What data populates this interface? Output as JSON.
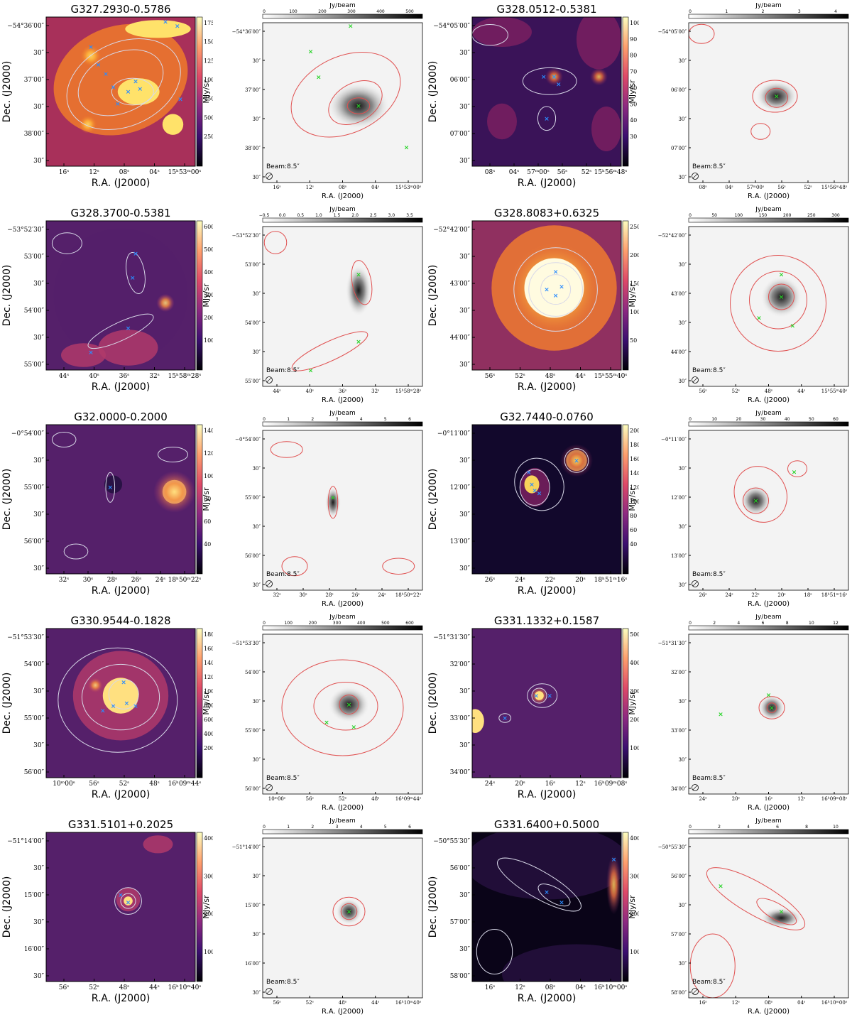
{
  "figure": {
    "panels": [
      {
        "name": "G327.2930-0.5786",
        "ir": {
          "dec_ticks": [
            "−54°36′00″",
            "30″",
            "37′00″",
            "30″",
            "38′00″",
            "30″"
          ],
          "ra_ticks": [
            "16ˢ",
            "12ˢ",
            "08ˢ",
            "04ˢ",
            "15ʰ53ᵐ00ˢ"
          ],
          "cbar_ticks": [
            "1750",
            "1500",
            "1250",
            "1000",
            "750",
            "500",
            "250"
          ],
          "cbar_label": "MJy/sr",
          "palette": "hot"
        },
        "mm": {
          "dec_ticks": [
            "−54°36′00″",
            "30″",
            "37′00″",
            "30″",
            "38′00″",
            "30″"
          ],
          "ra_ticks": [
            "16ˢ",
            "12ˢ",
            "08ˢ",
            "04ˢ",
            "15ʰ53ᵐ00ˢ"
          ],
          "cbar_ticks": [
            "0",
            "100",
            "200",
            "300",
            "400",
            "500"
          ],
          "cbar_label": "Jy/beam",
          "beam": "Beam:8.5″"
        }
      },
      {
        "name": "G328.0512-0.5381",
        "ir": {
          "dec_ticks": [
            "−54°05′00″",
            "30″",
            "06′00″",
            "30″",
            "07′00″",
            "30″"
          ],
          "ra_ticks": [
            "08ˢ",
            "04ˢ",
            "57ᵐ00ˢ",
            "56ˢ",
            "52ˢ",
            "15ʰ56ᵐ48ˢ"
          ],
          "cbar_ticks": [
            "100",
            "90",
            "80",
            "70",
            "60",
            "50",
            "40",
            "30"
          ],
          "cbar_label": "MJy/sr",
          "palette": "deep"
        },
        "mm": {
          "dec_ticks": [
            "−54°05′00″",
            "30″",
            "06′00″",
            "30″",
            "07′00″",
            "30″"
          ],
          "ra_ticks": [
            "08ˢ",
            "04ˢ",
            "57ᵐ00ˢ",
            "56ˢ",
            "52ˢ",
            "15ʰ56ᵐ48ˢ"
          ],
          "cbar_ticks": [
            "0",
            "1",
            "2",
            "3",
            "4"
          ],
          "cbar_label": "Jy/beam",
          "beam": "Beam:8.5″"
        }
      },
      {
        "name": "G328.3700-0.5381",
        "ir": {
          "dec_ticks": [
            "−53°52′30″",
            "53′00″",
            "30″",
            "54′00″",
            "30″",
            "55′00″"
          ],
          "ra_ticks": [
            "44ˢ",
            "40ˢ",
            "36ˢ",
            "32ˢ",
            "15ʰ58ᵐ28ˢ"
          ],
          "cbar_ticks": [
            "600",
            "500",
            "400",
            "300",
            "200",
            "100"
          ],
          "cbar_label": "MJy/sr",
          "palette": "purple"
        },
        "mm": {
          "dec_ticks": [
            "−53°52′30″",
            "53′00″",
            "30″",
            "54′00″",
            "30″",
            "55′00″"
          ],
          "ra_ticks": [
            "44ˢ",
            "40ˢ",
            "36ˢ",
            "32ˢ",
            "15ʰ58ᵐ28ˢ"
          ],
          "cbar_ticks": [
            "−0.5",
            "0.0",
            "0.5",
            "1.0",
            "1.5",
            "2.0",
            "2.5",
            "3.0",
            "3.5"
          ],
          "cbar_label": "Jy/beam",
          "beam": "Beam:8.5″"
        }
      },
      {
        "name": "G328.8083+0.6325",
        "ir": {
          "dec_ticks": [
            "−52°42′00″",
            "30″",
            "43′00″",
            "30″",
            "44′00″",
            "30″"
          ],
          "ra_ticks": [
            "56ˢ",
            "52ˢ",
            "48ˢ",
            "44ˢ",
            "15ʰ55ᵐ40ˢ"
          ],
          "cbar_ticks": [
            "250",
            "200",
            "150",
            "100",
            "50"
          ],
          "cbar_label": "MJy/sr",
          "palette": "star"
        },
        "mm": {
          "dec_ticks": [
            "−52°42′00″",
            "30″",
            "43′00″",
            "30″",
            "44′00″",
            "30″"
          ],
          "ra_ticks": [
            "56ˢ",
            "52ˢ",
            "48ˢ",
            "44ˢ",
            "15ʰ55ᵐ40ˢ"
          ],
          "cbar_ticks": [
            "0",
            "50",
            "100",
            "150",
            "200",
            "250",
            "300"
          ],
          "cbar_label": "Jy/beam",
          "beam": "Beam:8.5″"
        }
      },
      {
        "name": "G32.0000-0.2000",
        "ir": {
          "dec_ticks": [
            "−0°54′00″",
            "30″",
            "55′00″",
            "30″",
            "56′00″",
            "30″"
          ],
          "ra_ticks": [
            "32ˢ",
            "30ˢ",
            "28ˢ",
            "26ˢ",
            "24ˢ",
            "18ʰ50ᵐ22ˢ"
          ],
          "cbar_ticks": [
            "140",
            "120",
            "100",
            "80",
            "60",
            "40"
          ],
          "cbar_label": "MJy/sr",
          "palette": "purple"
        },
        "mm": {
          "dec_ticks": [
            "−0°54′00″",
            "30″",
            "55′00″",
            "30″",
            "56′00″",
            "30″"
          ],
          "ra_ticks": [
            "32ˢ",
            "30ˢ",
            "28ˢ",
            "26ˢ",
            "24ˢ",
            "18ʰ50ᵐ22ˢ"
          ],
          "cbar_ticks": [
            "0",
            "1",
            "2",
            "3",
            "4",
            "5",
            "6"
          ],
          "cbar_label": "Jy/beam",
          "beam": "Beam:8.5″"
        }
      },
      {
        "name": "G32.7440-0.0760",
        "ir": {
          "dec_ticks": [
            "−0°11′00″",
            "30″",
            "12′00″",
            "30″",
            "13′00″",
            "30″"
          ],
          "ra_ticks": [
            "26ˢ",
            "24ˢ",
            "22ˢ",
            "20ˢ",
            "18ʰ51ᵐ16ˢ"
          ],
          "cbar_ticks": [
            "200",
            "180",
            "160",
            "140",
            "120",
            "100",
            "80",
            "60",
            "40"
          ],
          "cbar_label": "MJy/sr",
          "palette": "deep"
        },
        "mm": {
          "dec_ticks": [
            "−0°11′00″",
            "30″",
            "12′00″",
            "30″",
            "13′00″",
            "30″"
          ],
          "ra_ticks": [
            "26ˢ",
            "24ˢ",
            "22ˢ",
            "20ˢ",
            "18ˢ",
            "18ʰ51ᵐ16ˢ"
          ],
          "cbar_ticks": [
            "0",
            "10",
            "20",
            "30",
            "40",
            "50",
            "60"
          ],
          "cbar_label": "Jy/beam",
          "beam": "Beam:8.5″"
        }
      },
      {
        "name": "G330.9544-0.1828",
        "ir": {
          "dec_ticks": [
            "−51°53′30″",
            "54′00″",
            "30″",
            "55′00″",
            "30″",
            "56′00″"
          ],
          "ra_ticks": [
            "10ᵐ00ˢ",
            "56ˢ",
            "52ˢ",
            "48ˢ",
            "16ʰ09ᵐ44ˢ"
          ],
          "cbar_ticks": [
            "1800",
            "1600",
            "1400",
            "1200",
            "1000",
            "800",
            "600",
            "400",
            "200"
          ],
          "cbar_label": "MJy/sr",
          "palette": "purple"
        },
        "mm": {
          "dec_ticks": [
            "−51°53′30″",
            "54′00″",
            "30″",
            "55′00″",
            "30″",
            "56′00″"
          ],
          "ra_ticks": [
            "10ᵐ00ˢ",
            "56ˢ",
            "52ˢ",
            "48ˢ",
            "16ʰ09ᵐ44ˢ"
          ],
          "cbar_ticks": [
            "0",
            "100",
            "200",
            "300",
            "400",
            "500",
            "600"
          ],
          "cbar_label": "Jy/beam",
          "beam": "Beam:8.5″"
        }
      },
      {
        "name": "G331.1332+0.1587",
        "ir": {
          "dec_ticks": [
            "−51°31′30″",
            "32′00″",
            "30″",
            "33′00″",
            "30″",
            "34′00″"
          ],
          "ra_ticks": [
            "24ˢ",
            "20ˢ",
            "16ˢ",
            "12ˢ",
            "16ʰ09ᵐ08ˢ"
          ],
          "cbar_ticks": [
            "500",
            "400",
            "300",
            "200",
            "100"
          ],
          "cbar_label": "MJy/sr",
          "palette": "purple"
        },
        "mm": {
          "dec_ticks": [
            "−51°31′30″",
            "32′00″",
            "30″",
            "33′00″",
            "30″",
            "34′00″"
          ],
          "ra_ticks": [
            "24ˢ",
            "20ˢ",
            "16ˢ",
            "12ˢ",
            "16ʰ09ᵐ08ˢ"
          ],
          "cbar_ticks": [
            "0",
            "2",
            "4",
            "6",
            "8",
            "10",
            "12"
          ],
          "cbar_label": "Jy/beam",
          "beam": "Beam:8.5″"
        }
      },
      {
        "name": "G331.5101+0.2025",
        "ir": {
          "dec_ticks": [
            "−51°14′00″",
            "30″",
            "15′00″",
            "30″",
            "16′00″",
            "30″"
          ],
          "ra_ticks": [
            "56ˢ",
            "52ˢ",
            "48ˢ",
            "44ˢ",
            "16ʰ10ᵐ40ˢ"
          ],
          "cbar_ticks": [
            "400",
            "300",
            "200",
            "100"
          ],
          "cbar_label": "MJy/sr",
          "palette": "purple"
        },
        "mm": {
          "dec_ticks": [
            "−51°14′00″",
            "30″",
            "15′00″",
            "30″",
            "16′00″",
            "30″"
          ],
          "ra_ticks": [
            "56ˢ",
            "52ˢ",
            "48ˢ",
            "44ˢ",
            "16ʰ10ᵐ40ˢ"
          ],
          "cbar_ticks": [
            "0",
            "1",
            "2",
            "3",
            "4",
            "5",
            "6"
          ],
          "cbar_label": "Jy/beam",
          "beam": "Beam:8.5″"
        }
      },
      {
        "name": "G331.6400+0.5000",
        "ir": {
          "dec_ticks": [
            "−50°55′30″",
            "56′00″",
            "30″",
            "57′00″",
            "30″",
            "58′00″"
          ],
          "ra_ticks": [
            "16ˢ",
            "12ˢ",
            "08ˢ",
            "04ˢ",
            "16ʰ10ᵐ00ˢ"
          ],
          "cbar_ticks": [
            "400",
            "300",
            "200",
            "100"
          ],
          "cbar_label": "MJy/sr",
          "palette": "dark"
        },
        "mm": {
          "dec_ticks": [
            "−50°55′30″",
            "56′00″",
            "30″",
            "57′00″",
            "30″",
            "58′00″"
          ],
          "ra_ticks": [
            "16ˢ",
            "12ˢ",
            "08ˢ",
            "04ˢ",
            "16ʰ10ᵐ00ˢ"
          ],
          "cbar_ticks": [
            "0",
            "2",
            "4",
            "6",
            "8",
            "10"
          ],
          "cbar_label": "Jy/beam",
          "beam": "Beam:8.5″"
        }
      }
    ],
    "axis_labels": {
      "x": "R.A. (J2000)",
      "y": "Dec. (J2000)"
    },
    "colors": {
      "ir_contour": "#d8d8e8",
      "mm_contour": "#e05050",
      "ir_marker": "#2a8cff",
      "mm_marker": "#27d327"
    }
  }
}
